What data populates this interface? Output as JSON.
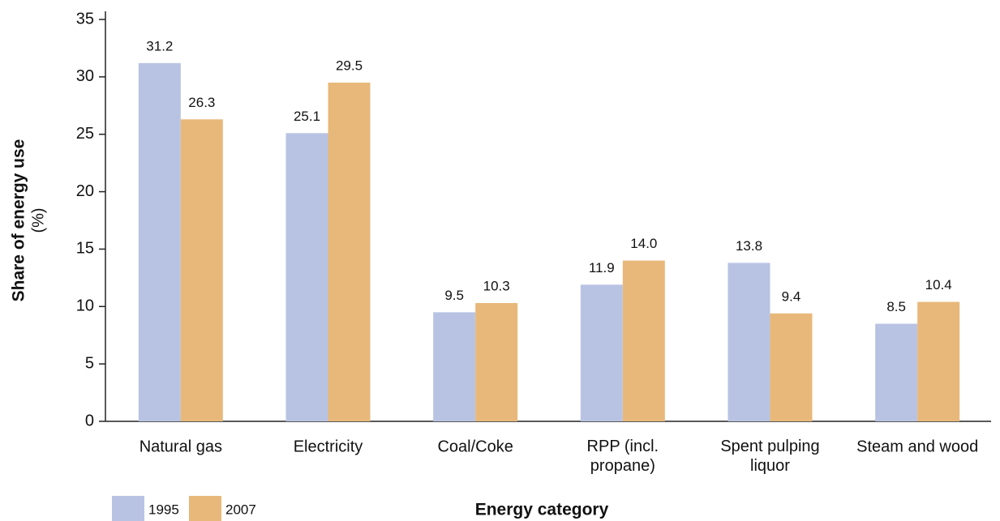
{
  "chart_data": {
    "type": "bar",
    "x_label": "Energy category",
    "y_label": "Share of energy use",
    "y_unit": "(%)",
    "categories": [
      "Natural gas",
      "Electricity",
      "Coal/Coke",
      "RPP (incl. propane)",
      "Spent pulping liquor",
      "Steam and wood"
    ],
    "series": [
      {
        "name": "1995",
        "color": "#b8c3e3",
        "values": [
          31.2,
          25.1,
          9.5,
          11.9,
          13.8,
          8.5
        ],
        "value_labels": [
          "31.2",
          "25.1",
          "9.5",
          "11.9",
          "13.8",
          "8.5"
        ]
      },
      {
        "name": "2007",
        "color": "#e8b87a",
        "values": [
          26.3,
          29.5,
          10.3,
          14.0,
          9.4,
          10.4
        ],
        "value_labels": [
          "26.3",
          "29.5",
          "10.3",
          "14.0",
          "9.4",
          "10.4"
        ]
      }
    ],
    "ylim": [
      0,
      35
    ],
    "yticks": [
      0,
      5,
      10,
      15,
      20,
      25,
      30,
      35
    ],
    "grid": false,
    "legend": "bottom-left"
  }
}
